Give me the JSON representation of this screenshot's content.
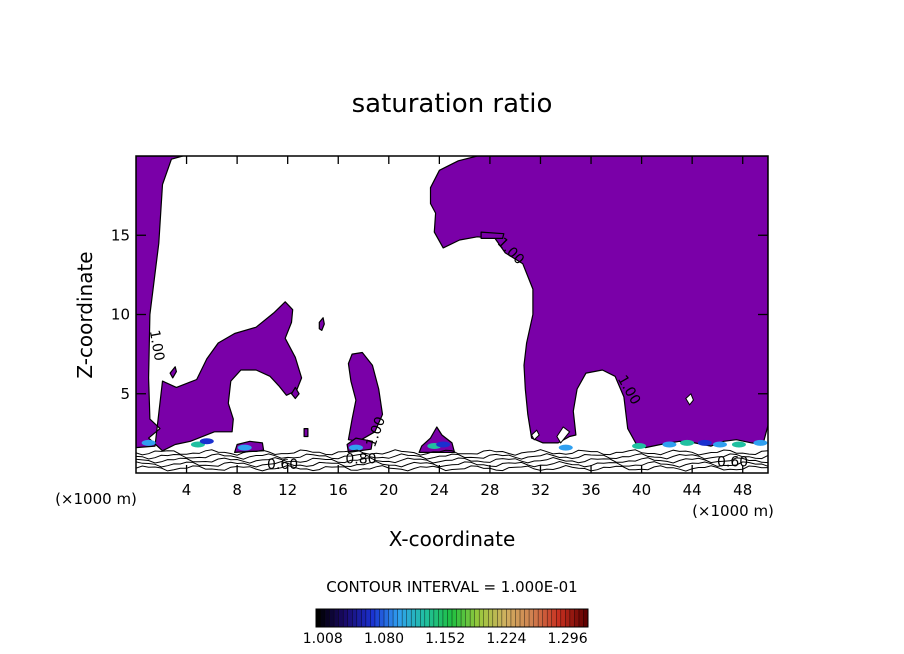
{
  "chart_data": {
    "type": "contour",
    "title": "saturation ratio",
    "xlabel": "X-coordinate",
    "ylabel": "Z-coordinate",
    "x_unit": "(×1000 m)",
    "y_unit": "(×1000 m)",
    "xlim": [
      0,
      50
    ],
    "ylim": [
      0,
      20
    ],
    "x_ticks": [
      4,
      8,
      12,
      16,
      20,
      24,
      28,
      32,
      36,
      40,
      44,
      48
    ],
    "y_ticks": [
      5,
      10,
      15
    ],
    "contour_interval_text": "CONTOUR INTERVAL = 1.000E-01",
    "contour_labels": [
      {
        "text": "1.00",
        "x": 1.3,
        "z": 8.0,
        "angle": 80
      },
      {
        "text": "1.00",
        "x": 29.4,
        "z": 13.8,
        "angle": 45
      },
      {
        "text": "1.00",
        "x": 38.7,
        "z": 5.1,
        "angle": 60
      },
      {
        "text": "1.00",
        "x": 19.3,
        "z": 2.5,
        "angle": -70
      },
      {
        "text": "0.60",
        "x": 11.6,
        "z": 0.25,
        "angle": 0
      },
      {
        "text": "0.80",
        "x": 17.8,
        "z": 0.6,
        "angle": 0
      },
      {
        "text": "0.60",
        "x": 47.2,
        "z": 0.4,
        "angle": 0
      }
    ],
    "fill_color": "#7a00a8",
    "colorbar": {
      "tick_labels": [
        "1.008",
        "1.080",
        "1.152",
        "1.224",
        "1.296"
      ],
      "range": [
        1.0,
        1.32
      ],
      "colors": [
        "#000000",
        "#1a0a6a",
        "#1a30d0",
        "#30a0f0",
        "#20c0a0",
        "#20c040",
        "#9ac83c",
        "#d0b060",
        "#d08050",
        "#c83020",
        "#600000"
      ]
    },
    "regions": [
      {
        "name": "left-column",
        "points": [
          [
            0,
            1.6
          ],
          [
            1.5,
            1.7
          ],
          [
            2.1,
            5.8
          ],
          [
            3.2,
            5.4
          ],
          [
            4.8,
            5.9
          ],
          [
            5.6,
            7.2
          ],
          [
            6.5,
            8.2
          ],
          [
            7.8,
            8.8
          ],
          [
            9.5,
            9.2
          ],
          [
            10.9,
            10.1
          ],
          [
            11.8,
            10.8
          ],
          [
            12.4,
            10.3
          ],
          [
            12.3,
            9.5
          ],
          [
            11.8,
            8.5
          ],
          [
            12.6,
            7.3
          ],
          [
            13.1,
            6.0
          ],
          [
            12.7,
            5.2
          ],
          [
            11.9,
            4.9
          ],
          [
            11.3,
            5.5
          ],
          [
            10.6,
            6.1
          ],
          [
            9.5,
            6.5
          ],
          [
            8.3,
            6.5
          ],
          [
            7.5,
            5.8
          ],
          [
            7.3,
            4.4
          ],
          [
            7.7,
            3.4
          ],
          [
            7.6,
            2.6
          ],
          [
            6.2,
            2.6
          ],
          [
            4.3,
            2.0
          ],
          [
            3.1,
            1.8
          ],
          [
            2.1,
            1.4
          ],
          [
            1.0,
            2.2
          ],
          [
            1.9,
            2.8
          ],
          [
            1.1,
            3.4
          ],
          [
            1.0,
            6.0
          ],
          [
            1.1,
            10.0
          ],
          [
            1.8,
            14.5
          ],
          [
            2.1,
            18.2
          ],
          [
            2.8,
            19.8
          ],
          [
            3.7,
            20
          ],
          [
            0,
            20
          ]
        ]
      },
      {
        "name": "right-plume",
        "points": [
          [
            23.3,
            18.0
          ],
          [
            24.0,
            19.1
          ],
          [
            25.5,
            19.7
          ],
          [
            27.0,
            20
          ],
          [
            50,
            20
          ],
          [
            50,
            3.0
          ],
          [
            49.6,
            1.8
          ],
          [
            48.7,
            1.9
          ],
          [
            47.5,
            2.1
          ],
          [
            46.5,
            2.0
          ],
          [
            45.5,
            1.7
          ],
          [
            44.2,
            1.9
          ],
          [
            43.0,
            2.0
          ],
          [
            41.5,
            1.8
          ],
          [
            40.3,
            1.6
          ],
          [
            39.6,
            1.8
          ],
          [
            38.9,
            2.8
          ],
          [
            38.6,
            4.8
          ],
          [
            37.9,
            6.1
          ],
          [
            36.9,
            6.5
          ],
          [
            35.6,
            6.3
          ],
          [
            34.9,
            5.3
          ],
          [
            34.6,
            3.9
          ],
          [
            34.8,
            2.4
          ],
          [
            34.3,
            2.3
          ],
          [
            33.4,
            1.9
          ],
          [
            32.2,
            1.9
          ],
          [
            31.3,
            2.2
          ],
          [
            31.0,
            3.7
          ],
          [
            30.8,
            5.3
          ],
          [
            30.7,
            6.8
          ],
          [
            30.9,
            8.2
          ],
          [
            31.4,
            10.0
          ],
          [
            31.4,
            11.6
          ],
          [
            30.6,
            13.2
          ],
          [
            29.2,
            13.9
          ],
          [
            28.4,
            14.8
          ],
          [
            27.0,
            14.9
          ],
          [
            25.6,
            14.7
          ],
          [
            24.3,
            14.2
          ],
          [
            23.6,
            15.2
          ],
          [
            23.7,
            16.4
          ],
          [
            23.3,
            17.0
          ]
        ]
      },
      {
        "name": "center-blob",
        "points": [
          [
            17.1,
            7.5
          ],
          [
            17.9,
            7.6
          ],
          [
            18.7,
            6.8
          ],
          [
            19.2,
            5.3
          ],
          [
            19.5,
            3.7
          ],
          [
            18.9,
            2.6
          ],
          [
            17.6,
            2.0
          ],
          [
            16.8,
            2.1
          ],
          [
            17.1,
            3.4
          ],
          [
            17.4,
            4.6
          ],
          [
            17.0,
            5.8
          ],
          [
            16.8,
            6.9
          ]
        ]
      },
      {
        "name": "center-base",
        "points": [
          [
            16.8,
            1.3
          ],
          [
            18.6,
            1.5
          ],
          [
            18.7,
            2.0
          ],
          [
            17.4,
            2.2
          ],
          [
            16.7,
            1.8
          ]
        ]
      },
      {
        "name": "blob-24",
        "points": [
          [
            22.4,
            1.3
          ],
          [
            25.2,
            1.3
          ],
          [
            25.0,
            1.9
          ],
          [
            24.2,
            2.4
          ],
          [
            23.8,
            2.9
          ],
          [
            23.3,
            2.2
          ],
          [
            22.6,
            1.7
          ]
        ]
      },
      {
        "name": "blob-9",
        "points": [
          [
            7.8,
            1.3
          ],
          [
            10.1,
            1.4
          ],
          [
            10.0,
            1.9
          ],
          [
            9.0,
            2.0
          ],
          [
            8.0,
            1.8
          ]
        ]
      },
      {
        "name": "blob-14",
        "points": [
          [
            13.3,
            2.3
          ],
          [
            13.6,
            2.3
          ],
          [
            13.6,
            2.8
          ],
          [
            13.3,
            2.8
          ]
        ]
      },
      {
        "name": "blob-15",
        "points": [
          [
            14.5,
            9.5
          ],
          [
            14.8,
            9.8
          ],
          [
            14.9,
            9.4
          ],
          [
            14.7,
            9.0
          ],
          [
            14.5,
            9.1
          ]
        ]
      },
      {
        "name": "blob-3",
        "points": [
          [
            2.7,
            6.3
          ],
          [
            3.1,
            6.7
          ],
          [
            3.2,
            6.4
          ],
          [
            2.9,
            6.0
          ]
        ]
      },
      {
        "name": "blob-12",
        "points": [
          [
            12.3,
            5.0
          ],
          [
            12.6,
            5.4
          ],
          [
            12.9,
            5.0
          ],
          [
            12.6,
            4.7
          ]
        ]
      },
      {
        "name": "blob-29",
        "points": [
          [
            27.3,
            15.2
          ],
          [
            29.1,
            15.1
          ],
          [
            29.0,
            14.8
          ],
          [
            27.3,
            14.8
          ]
        ]
      }
    ],
    "voids": [
      {
        "name": "hole-44",
        "points": [
          [
            43.5,
            4.7
          ],
          [
            43.8,
            4.3
          ],
          [
            44.1,
            4.6
          ],
          [
            43.9,
            5.0
          ]
        ]
      },
      {
        "name": "hole-33",
        "points": [
          [
            33.6,
            1.9
          ],
          [
            34.3,
            2.6
          ],
          [
            33.8,
            2.9
          ],
          [
            33.3,
            2.3
          ]
        ]
      },
      {
        "name": "hole-31",
        "points": [
          [
            31.5,
            2.1
          ],
          [
            31.9,
            2.4
          ],
          [
            31.7,
            2.7
          ],
          [
            31.3,
            2.4
          ]
        ]
      }
    ]
  }
}
